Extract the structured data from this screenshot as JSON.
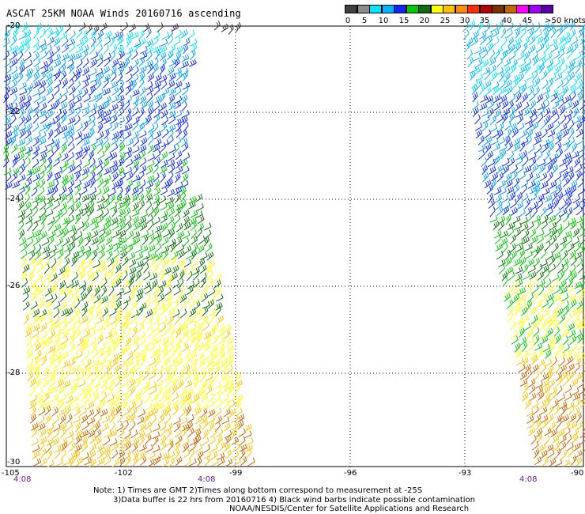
{
  "title": "ASCAT 25KM NOAA Winds 20160716 ascending",
  "legend": {
    "labels": [
      "0",
      "5",
      "10",
      "15",
      "20",
      "25",
      "30",
      "35",
      "40",
      "45",
      ">50 knots"
    ],
    "colors": [
      "#404040",
      "#8c8c8c",
      "#00e5ff",
      "#00b4ff",
      "#0a28ff",
      "#00c800",
      "#0a6e0a",
      "#ffff00",
      "#ffc000",
      "#ff8c00",
      "#ff2d00",
      "#b40000",
      "#7a3200",
      "#c86400",
      "#ff00ff",
      "#a000ff",
      "#5a00aa"
    ]
  },
  "axes": {
    "latitude_labels": [
      "-20",
      "-22",
      "-24",
      "-26",
      "-28",
      "-30"
    ],
    "longitude_labels": [
      "-105",
      "-102",
      "-99",
      "-96",
      "-93",
      "-90"
    ]
  },
  "time_labels": [
    "4:08",
    "4:08",
    "4:08"
  ],
  "notes": {
    "line1": "Note: 1) Times are GMT 2)Times along bottom correspond to measurement at -25S",
    "line2": "3)Data buffer is 22 hrs from 20160716 4) Black wind barbs indicate possible contamination",
    "line3": "NOAA/NESDIS/Center for Satellite Applications and Research"
  }
}
